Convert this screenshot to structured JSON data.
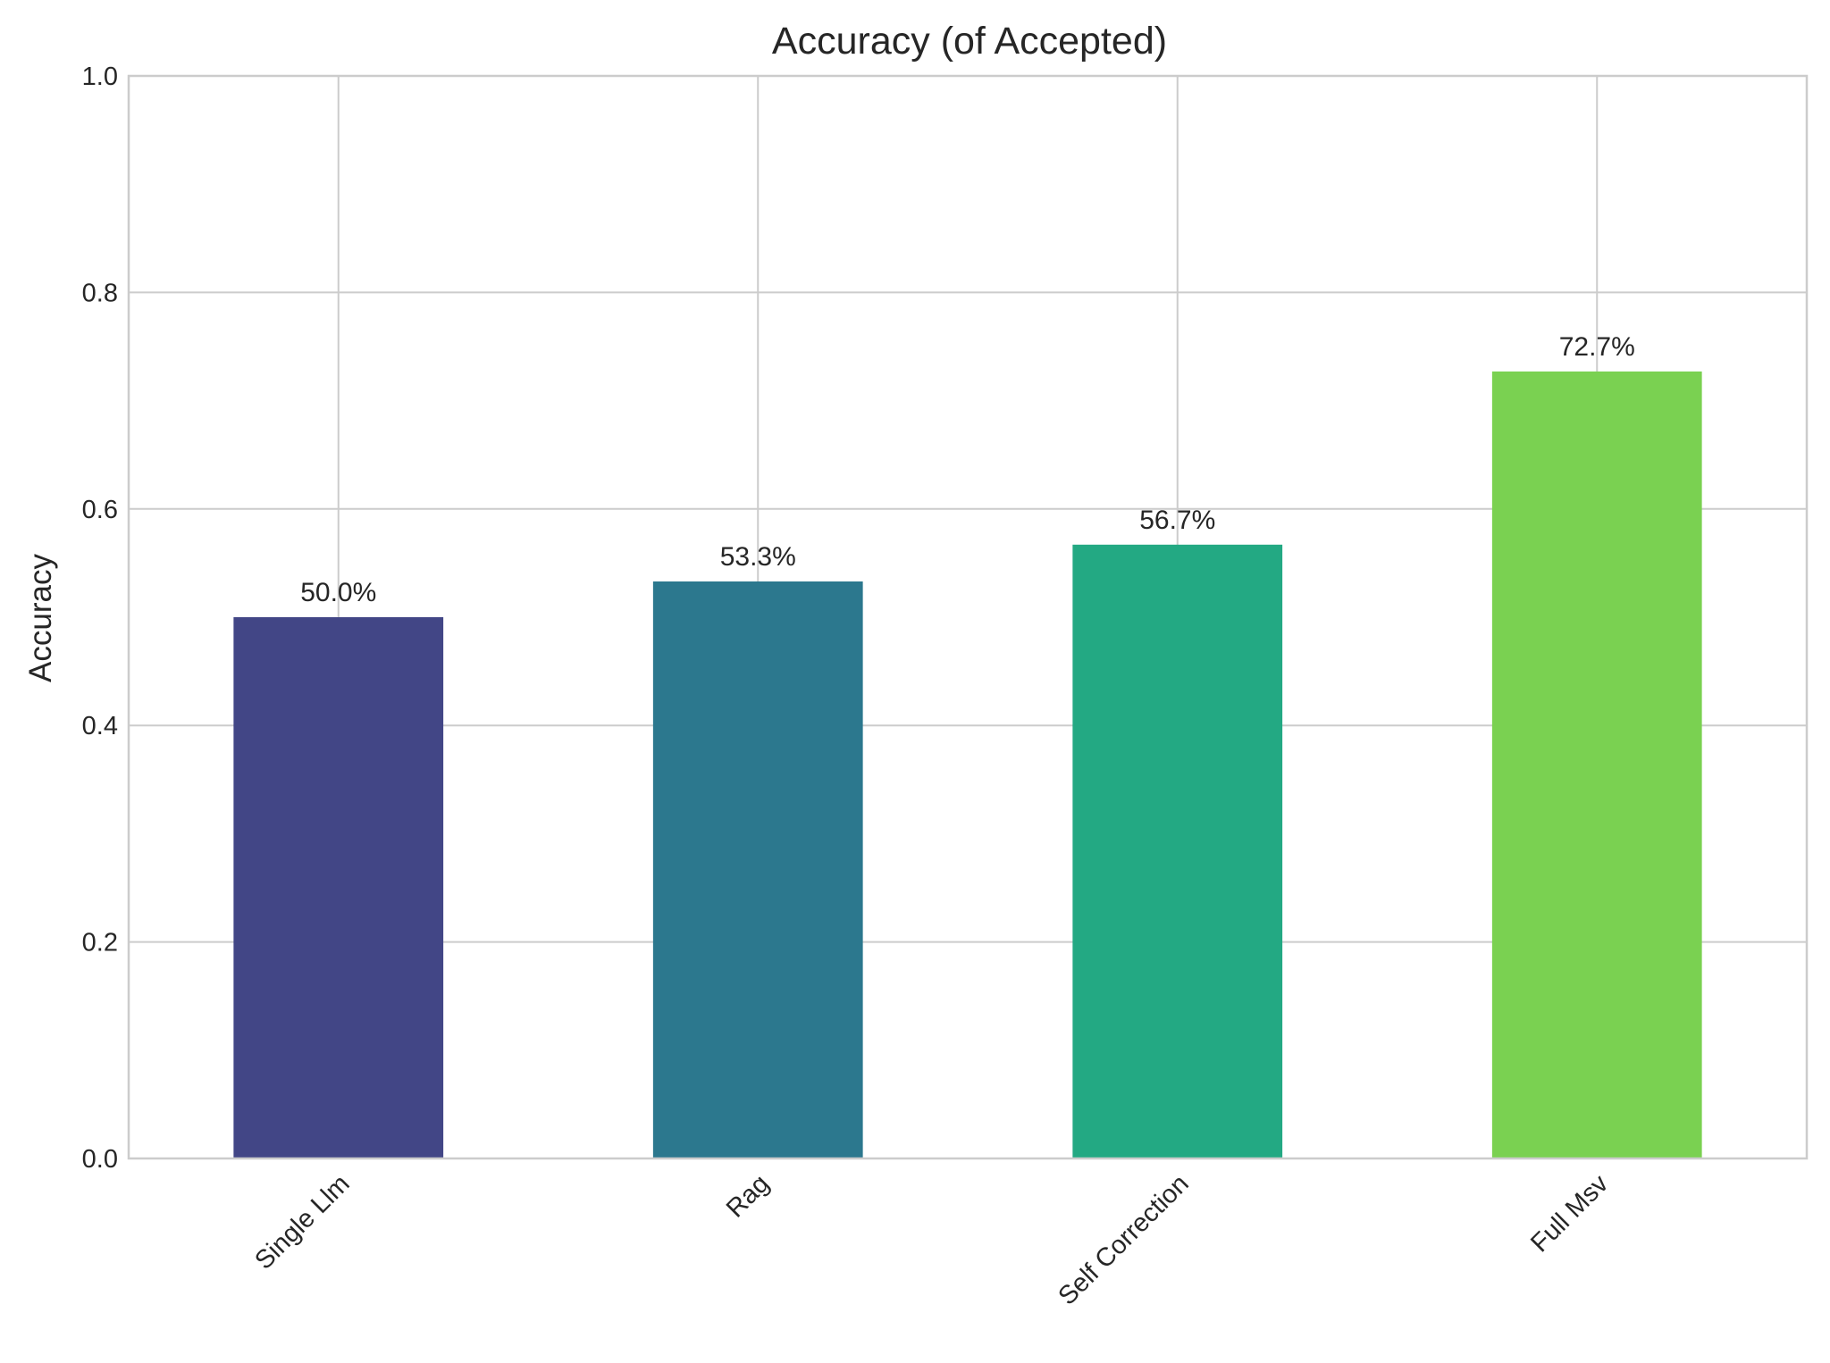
{
  "chart_data": {
    "type": "bar",
    "title": "Accuracy (of Accepted)",
    "xlabel": "",
    "ylabel": "Accuracy",
    "categories": [
      "Single Llm",
      "Rag",
      "Self Correction",
      "Full Msv"
    ],
    "values": [
      0.5,
      0.533,
      0.567,
      0.727
    ],
    "data_labels": [
      "50.0%",
      "53.3%",
      "56.7%",
      "72.7%"
    ],
    "colors": [
      "#424686",
      "#2c788e",
      "#23a983",
      "#7ad151"
    ],
    "ylim": [
      0,
      1
    ],
    "yticks": [
      0.0,
      0.2,
      0.4,
      0.6,
      0.8,
      1.0
    ],
    "ytick_labels": [
      "0.0",
      "0.2",
      "0.4",
      "0.6",
      "0.8",
      "1.0"
    ],
    "grid": true,
    "legend": "none"
  }
}
